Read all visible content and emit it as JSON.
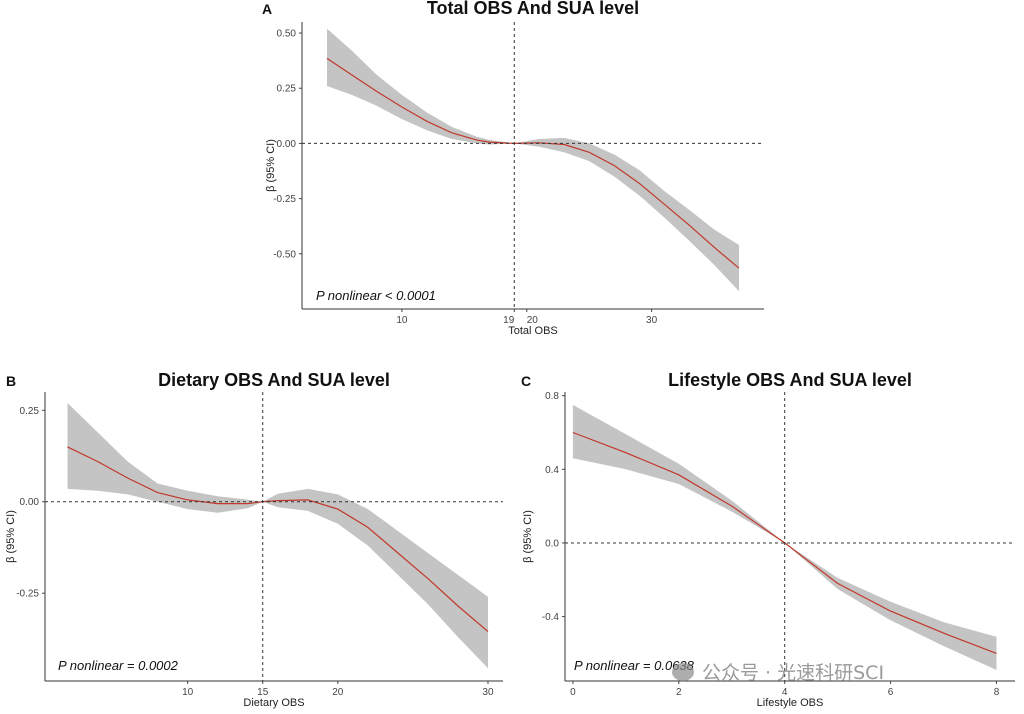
{
  "chart_data": [
    {
      "type": "line",
      "panel": "A",
      "title": "Total OBS And SUA level",
      "xlabel": "Total OBS",
      "ylabel": "β (95% CI)",
      "xlim": [
        2,
        39
      ],
      "ylim": [
        -0.75,
        0.55
      ],
      "xticks": [
        10,
        19,
        20,
        30
      ],
      "xtick_labels": [
        "10",
        "19",
        "20",
        "30"
      ],
      "yticks": [
        0.5,
        0.25,
        0.0,
        -0.25,
        -0.5
      ],
      "ytick_labels": [
        "0.50",
        "0.25",
        "0.00",
        "-0.25",
        "-0.50"
      ],
      "ref_x": 19,
      "ref_y": 0,
      "annotation": "P nonlinear < 0.0001",
      "grid": false,
      "series": [
        {
          "x": [
            4,
            6,
            8,
            10,
            12,
            14,
            16,
            17,
            19,
            21,
            23,
            25,
            27,
            29,
            31,
            33,
            35,
            37
          ],
          "values": [
            0.385,
            0.31,
            0.235,
            0.165,
            0.1,
            0.048,
            0.015,
            0.006,
            0.0,
            0.003,
            -0.005,
            -0.04,
            -0.1,
            -0.18,
            -0.275,
            -0.37,
            -0.47,
            -0.565
          ],
          "lower": [
            0.26,
            0.22,
            0.17,
            0.11,
            0.06,
            0.02,
            0.0,
            -0.005,
            0.0,
            -0.015,
            -0.04,
            -0.08,
            -0.15,
            -0.235,
            -0.335,
            -0.44,
            -0.55,
            -0.67
          ],
          "upper": [
            0.52,
            0.42,
            0.31,
            0.22,
            0.14,
            0.075,
            0.03,
            0.016,
            0.0,
            0.02,
            0.025,
            0.0,
            -0.05,
            -0.12,
            -0.215,
            -0.3,
            -0.39,
            -0.46
          ]
        }
      ]
    },
    {
      "type": "line",
      "panel": "B",
      "title": "Dietary OBS And SUA level",
      "xlabel": "Dietary OBS",
      "ylabel": "β (95% CI)",
      "xlim": [
        0.5,
        31
      ],
      "ylim": [
        -0.49,
        0.3
      ],
      "xticks": [
        10,
        15,
        20,
        30
      ],
      "xtick_labels": [
        "10",
        "15",
        "20",
        "30"
      ],
      "yticks": [
        0.25,
        0.0,
        -0.25
      ],
      "ytick_labels": [
        "0.25",
        "0.00",
        "-0.25"
      ],
      "ref_x": 15,
      "ref_y": 0,
      "annotation": "P nonlinear = 0.0002",
      "grid": false,
      "series": [
        {
          "x": [
            2,
            4,
            6,
            8,
            10,
            12,
            14,
            15,
            16,
            18,
            20,
            22,
            24,
            26,
            28,
            30
          ],
          "values": [
            0.15,
            0.11,
            0.065,
            0.025,
            0.005,
            -0.005,
            -0.005,
            0.0,
            0.003,
            0.005,
            -0.02,
            -0.07,
            -0.14,
            -0.21,
            -0.285,
            -0.355
          ],
          "lower": [
            0.035,
            0.03,
            0.02,
            0.0,
            -0.02,
            -0.03,
            -0.018,
            0.0,
            -0.015,
            -0.025,
            -0.06,
            -0.12,
            -0.2,
            -0.28,
            -0.37,
            -0.455
          ],
          "upper": [
            0.27,
            0.19,
            0.11,
            0.05,
            0.03,
            0.015,
            0.006,
            0.0,
            0.022,
            0.035,
            0.02,
            -0.02,
            -0.08,
            -0.14,
            -0.2,
            -0.26
          ]
        }
      ]
    },
    {
      "type": "line",
      "panel": "C",
      "title": "Lifestyle OBS And SUA level",
      "xlabel": "Lifestyle OBS",
      "ylabel": "β (95% CI)",
      "xlim": [
        -0.15,
        8.35
      ],
      "ylim": [
        -0.75,
        0.82
      ],
      "xticks": [
        0,
        2,
        4,
        6,
        8
      ],
      "xtick_labels": [
        "0",
        "2",
        "4",
        "6",
        "8"
      ],
      "yticks": [
        0.8,
        0.4,
        0.0,
        -0.4
      ],
      "ytick_labels": [
        "0.8",
        "0.4",
        "0.0",
        "-0.4"
      ],
      "ref_x": 4,
      "ref_y": 0,
      "annotation": "P nonlinear = 0.0638",
      "grid": false,
      "series": [
        {
          "x": [
            0,
            1,
            2,
            3,
            4,
            5,
            6,
            7,
            8
          ],
          "values": [
            0.6,
            0.49,
            0.37,
            0.2,
            0.0,
            -0.22,
            -0.37,
            -0.49,
            -0.6
          ],
          "lower": [
            0.46,
            0.4,
            0.32,
            0.17,
            0.0,
            -0.25,
            -0.42,
            -0.56,
            -0.69
          ],
          "upper": [
            0.75,
            0.59,
            0.43,
            0.23,
            0.0,
            -0.19,
            -0.32,
            -0.43,
            -0.51
          ]
        }
      ]
    }
  ],
  "watermark": {
    "text": "公众号 · 光速科研SCI"
  }
}
